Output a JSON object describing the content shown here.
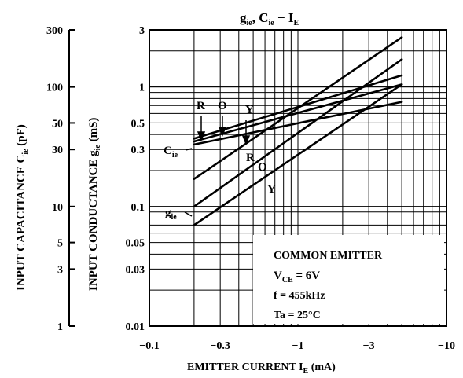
{
  "chart_data": {
    "type": "line",
    "title": {
      "g": "g",
      "g_sub": "ie",
      "sep1": ", C",
      "c_sub": "ie",
      "sep2": " − I",
      "i_sub": "E"
    },
    "xlabel": {
      "pre": "EMITTER   CURRENT   I",
      "sub": "E",
      "post": " (mA)"
    },
    "ylabel_left": {
      "pre": "INPUT CAPACITANCE  C",
      "sub": "ie",
      "post": "  (pF)"
    },
    "ylabel_right": {
      "pre": "INPUT CONDUCTANCE  g",
      "sub": "ie",
      "post": "  (mS)"
    },
    "x_scale": "log",
    "x_range": [
      -0.1,
      -10
    ],
    "x_ticks": [
      "−0.1",
      "−0.3",
      "−1",
      "−3",
      "−10"
    ],
    "y_scale": "log",
    "y_range_conductance": [
      0.01,
      3
    ],
    "y_ticks_conductance": [
      "0.01",
      "0.03",
      "0.05",
      "0.1",
      "0.3",
      "0.5",
      "1",
      "3"
    ],
    "y_range_capacitance": [
      1,
      300
    ],
    "y_ticks_capacitance": [
      "1",
      "3",
      "5",
      "10",
      "30",
      "50",
      "100",
      "300"
    ],
    "grid": true,
    "series": [
      {
        "name": "R",
        "group": "gie",
        "x": [
          -0.2,
          -5
        ],
        "y": [
          0.17,
          2.6
        ]
      },
      {
        "name": "O",
        "group": "gie",
        "x": [
          -0.2,
          -5
        ],
        "y": [
          0.1,
          1.7
        ]
      },
      {
        "name": "Y",
        "group": "gie",
        "x": [
          -0.2,
          -5
        ],
        "y": [
          0.07,
          1.05
        ]
      },
      {
        "name": "R",
        "group": "Cie",
        "x": [
          -0.2,
          -5
        ],
        "y": [
          0.37,
          1.25
        ]
      },
      {
        "name": "O",
        "group": "Cie",
        "x": [
          -0.2,
          -5
        ],
        "y": [
          0.35,
          1.05
        ]
      },
      {
        "name": "Y",
        "group": "Cie",
        "x": [
          -0.2,
          -5
        ],
        "y": [
          0.33,
          0.75
        ]
      }
    ],
    "annotations": {
      "curve_group_cie": {
        "pre": "C",
        "sub": "ie"
      },
      "curve_group_gie": {
        "pre": "g",
        "sub": "ie"
      },
      "rank_labels_top": [
        "R",
        "O",
        "Y"
      ],
      "rank_labels_gie": [
        "R",
        "O",
        "Y"
      ],
      "conditions": [
        {
          "pre": "COMMON EMITTER",
          "sub": "",
          "post": ""
        },
        {
          "pre": "V",
          "sub": "CE",
          "post": " = 6V"
        },
        {
          "pre": "f = 455kHz",
          "sub": "",
          "post": ""
        },
        {
          "pre": "Ta = 25°C",
          "sub": "",
          "post": ""
        }
      ]
    }
  }
}
